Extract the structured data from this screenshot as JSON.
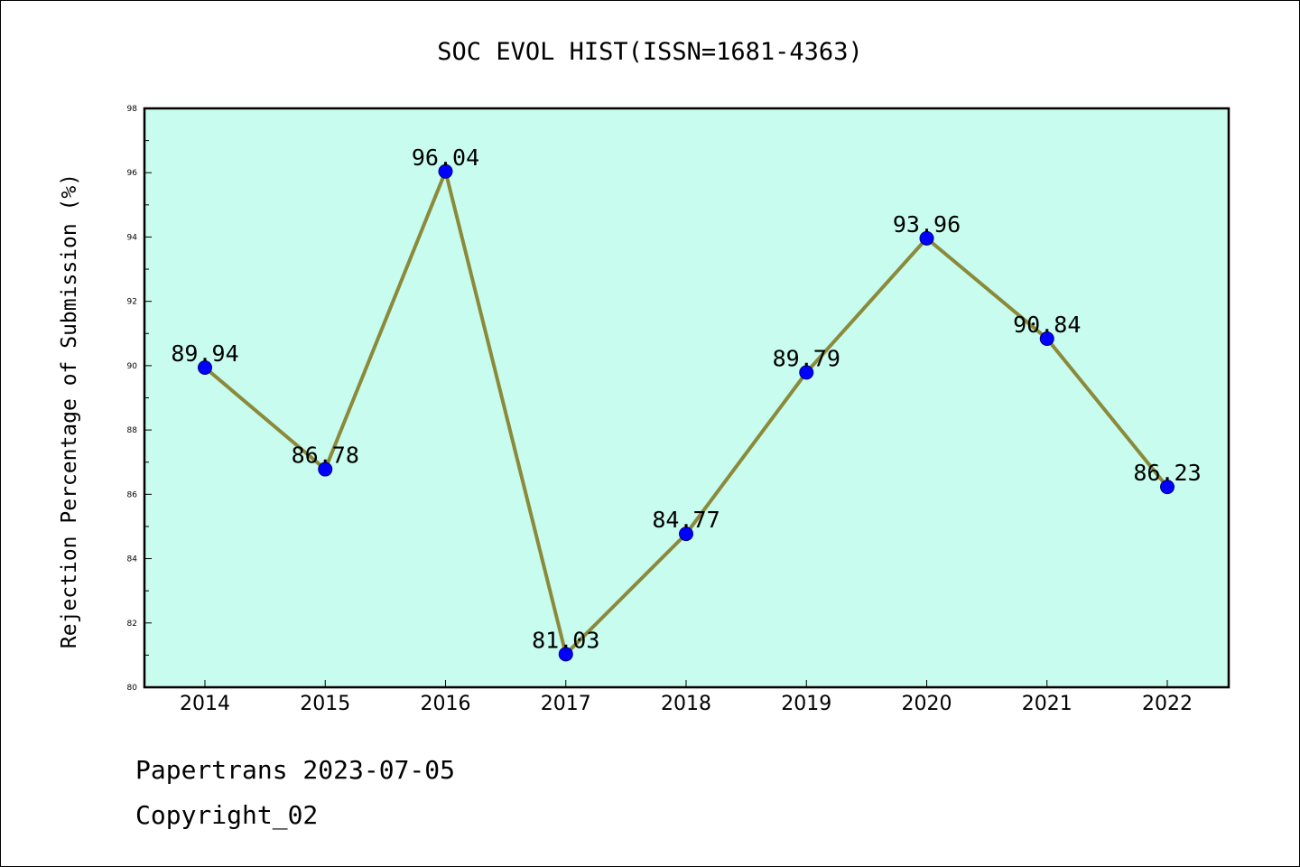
{
  "chart_data": {
    "type": "line",
    "title": "SOC EVOL HIST(ISSN=1681-4363)",
    "xlabel": "",
    "ylabel": "Rejection Percentage of Submission (%)",
    "categories": [
      "2014",
      "2015",
      "2016",
      "2017",
      "2018",
      "2019",
      "2020",
      "2021",
      "2022"
    ],
    "values": [
      89.94,
      86.78,
      96.04,
      81.03,
      84.77,
      89.79,
      93.96,
      90.84,
      86.23
    ],
    "data_labels": [
      "89.94",
      "86.78",
      "96.04",
      "81.03",
      "84.77",
      "89.79",
      "93.96",
      "90.84",
      "86.23"
    ],
    "ylim": [
      80,
      98
    ],
    "yticks": [
      "80",
      "82",
      "84",
      "86",
      "88",
      "90",
      "92",
      "94",
      "96",
      "98"
    ],
    "grid": false,
    "legend": "none",
    "colors": {
      "plot_background": "#c8fcee",
      "line": "#8b8a3a",
      "marker": "#0000ff"
    }
  },
  "footer": {
    "line1": "Papertrans 2023-07-05",
    "line2": "Copyright_02"
  }
}
